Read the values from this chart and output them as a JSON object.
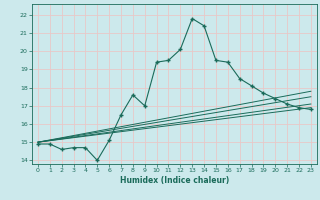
{
  "title": "",
  "xlabel": "Humidex (Indice chaleur)",
  "ylabel": "",
  "background_color": "#cce9ec",
  "grid_color": "#e8c8c8",
  "line_color": "#1a6b5a",
  "xlim": [
    -0.5,
    23.5
  ],
  "ylim": [
    13.8,
    22.6
  ],
  "xticks": [
    0,
    1,
    2,
    3,
    4,
    5,
    6,
    7,
    8,
    9,
    10,
    11,
    12,
    13,
    14,
    15,
    16,
    17,
    18,
    19,
    20,
    21,
    22,
    23
  ],
  "yticks": [
    14,
    15,
    16,
    17,
    18,
    19,
    20,
    21,
    22
  ],
  "line1_x": [
    0,
    1,
    2,
    3,
    4,
    5,
    6,
    7,
    8,
    9,
    10,
    11,
    12,
    13,
    14,
    15,
    16,
    17,
    18,
    19,
    20,
    21,
    22,
    23
  ],
  "line1_y": [
    14.9,
    14.9,
    14.6,
    14.7,
    14.7,
    14.0,
    15.1,
    16.5,
    17.6,
    17.0,
    19.4,
    19.5,
    20.1,
    21.8,
    21.4,
    19.5,
    19.4,
    18.5,
    18.1,
    17.7,
    17.4,
    17.1,
    16.9,
    16.8
  ],
  "line2_x": [
    0,
    23
  ],
  "line2_y": [
    15.0,
    17.8
  ],
  "line3_x": [
    0,
    23
  ],
  "line3_y": [
    15.0,
    17.5
  ],
  "line4_x": [
    0,
    23
  ],
  "line4_y": [
    15.0,
    17.1
  ],
  "line5_x": [
    0,
    23
  ],
  "line5_y": [
    15.0,
    16.9
  ]
}
